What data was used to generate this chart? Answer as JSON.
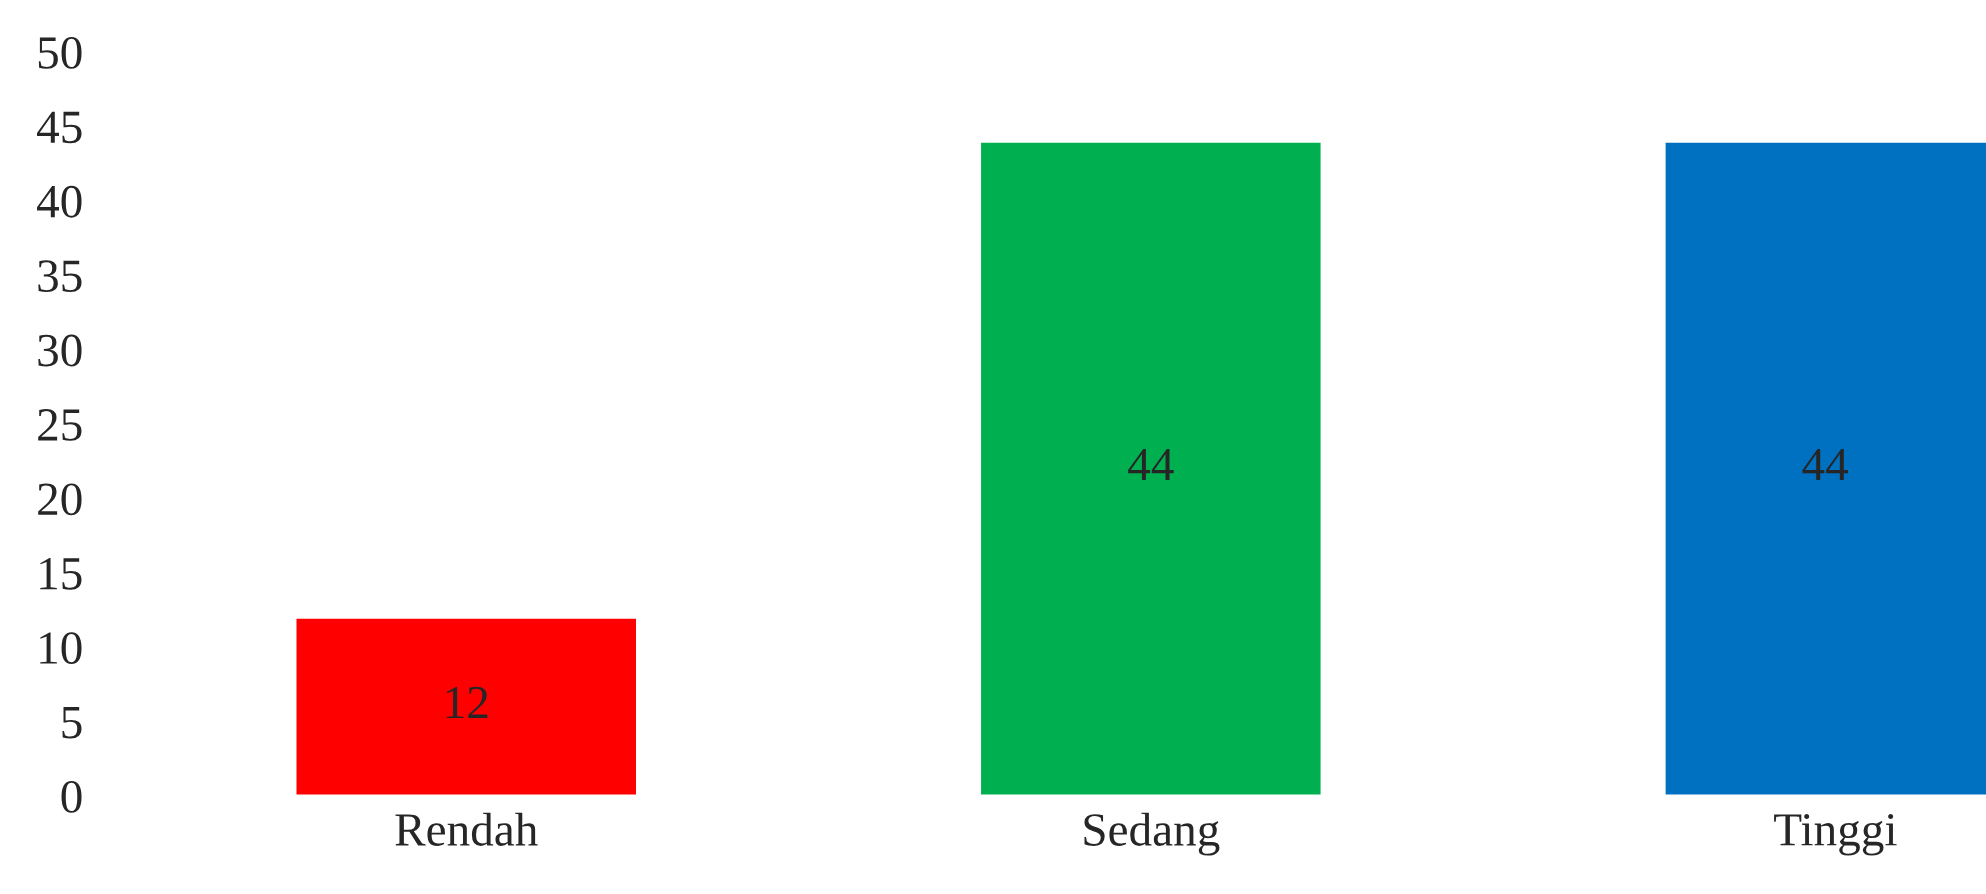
{
  "chart_data": {
    "type": "bar",
    "categories": [
      "Rendah",
      "Sedang",
      "Tinggi"
    ],
    "values": [
      12,
      44,
      44
    ],
    "colors": [
      "#ff0000",
      "#00b050",
      "#0070c0"
    ],
    "ylim": [
      0,
      50
    ],
    "yticks": [
      0,
      5,
      10,
      15,
      20,
      25,
      30,
      35,
      40,
      45,
      50
    ],
    "data_labels": true,
    "grid": false,
    "legend": false
  }
}
